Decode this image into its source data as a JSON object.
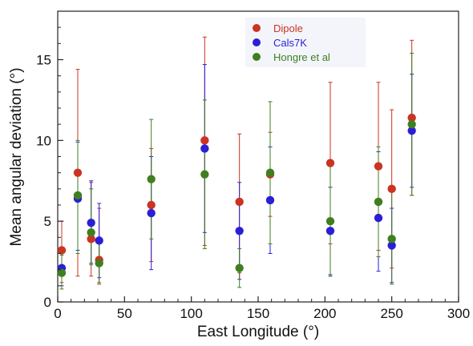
{
  "chart_data": {
    "type": "scatter",
    "title": "",
    "xlabel": "East Longitude (°)",
    "ylabel": "Mean angular deviation (°)",
    "xlim": [
      0,
      300
    ],
    "ylim": [
      0,
      18
    ],
    "xticks": [
      "0",
      "50",
      "100",
      "150",
      "200",
      "250",
      "300"
    ],
    "yticks": [
      "0",
      "5",
      "10",
      "15"
    ],
    "grid": false,
    "legend_position": "top-center",
    "series": [
      {
        "name": "Dipole",
        "color": "#cc3322",
        "points": [
          {
            "x": 3,
            "y": 3.2,
            "lo": 1.2,
            "hi": 5.0
          },
          {
            "x": 15,
            "y": 8.0,
            "lo": 1.6,
            "hi": 14.4
          },
          {
            "x": 25,
            "y": 3.9,
            "lo": 1.6,
            "hi": 7.4
          },
          {
            "x": 31,
            "y": 2.6,
            "lo": 1.1,
            "hi": 5.8
          },
          {
            "x": 70,
            "y": 6.0,
            "lo": 2.5,
            "hi": 9.5
          },
          {
            "x": 110,
            "y": 10.0,
            "lo": 3.5,
            "hi": 16.4
          },
          {
            "x": 136,
            "y": 6.2,
            "lo": 1.8,
            "hi": 10.4
          },
          {
            "x": 159,
            "y": 7.9,
            "lo": 5.3,
            "hi": 10.5
          },
          {
            "x": 204,
            "y": 8.6,
            "lo": 3.6,
            "hi": 13.6
          },
          {
            "x": 240,
            "y": 8.4,
            "lo": 3.2,
            "hi": 13.6
          },
          {
            "x": 250,
            "y": 7.0,
            "lo": 2.1,
            "hi": 11.9
          },
          {
            "x": 265,
            "y": 11.4,
            "lo": 6.6,
            "hi": 16.2
          }
        ]
      },
      {
        "name": "Cals7K",
        "color": "#2a1fd6",
        "points": [
          {
            "x": 3,
            "y": 2.1,
            "lo": 1.0,
            "hi": 3.3
          },
          {
            "x": 15,
            "y": 6.4,
            "lo": 3.2,
            "hi": 9.9
          },
          {
            "x": 25,
            "y": 4.9,
            "lo": 2.4,
            "hi": 7.5
          },
          {
            "x": 31,
            "y": 3.8,
            "lo": 1.5,
            "hi": 6.1
          },
          {
            "x": 70,
            "y": 5.5,
            "lo": 2.0,
            "hi": 9.0
          },
          {
            "x": 110,
            "y": 9.5,
            "lo": 4.3,
            "hi": 14.7
          },
          {
            "x": 136,
            "y": 4.4,
            "lo": 1.4,
            "hi": 7.4
          },
          {
            "x": 159,
            "y": 6.3,
            "lo": 3.0,
            "hi": 9.6
          },
          {
            "x": 204,
            "y": 4.4,
            "lo": 1.6,
            "hi": 7.1
          },
          {
            "x": 240,
            "y": 5.2,
            "lo": 1.9,
            "hi": 9.3
          },
          {
            "x": 250,
            "y": 3.5,
            "lo": 1.2,
            "hi": 5.8
          },
          {
            "x": 265,
            "y": 10.6,
            "lo": 7.1,
            "hi": 14.1
          }
        ]
      },
      {
        "name": "Hongre et al",
        "color": "#3f7f1f",
        "points": [
          {
            "x": 3,
            "y": 1.8,
            "lo": 0.8,
            "hi": 2.9
          },
          {
            "x": 15,
            "y": 6.6,
            "lo": 3.0,
            "hi": 10.0
          },
          {
            "x": 25,
            "y": 4.3,
            "lo": 2.3,
            "hi": 7.0
          },
          {
            "x": 31,
            "y": 2.4,
            "lo": 1.2,
            "hi": 3.6
          },
          {
            "x": 70,
            "y": 7.6,
            "lo": 3.9,
            "hi": 11.3
          },
          {
            "x": 110,
            "y": 7.9,
            "lo": 3.3,
            "hi": 12.5
          },
          {
            "x": 136,
            "y": 2.1,
            "lo": 0.9,
            "hi": 3.3
          },
          {
            "x": 159,
            "y": 8.0,
            "lo": 3.6,
            "hi": 12.4
          },
          {
            "x": 204,
            "y": 5.0,
            "lo": 1.7,
            "hi": 8.6
          },
          {
            "x": 240,
            "y": 6.2,
            "lo": 2.8,
            "hi": 9.6
          },
          {
            "x": 250,
            "y": 3.9,
            "lo": 1.1,
            "hi": 7.0
          },
          {
            "x": 265,
            "y": 11.0,
            "lo": 6.6,
            "hi": 15.4
          }
        ]
      }
    ]
  }
}
